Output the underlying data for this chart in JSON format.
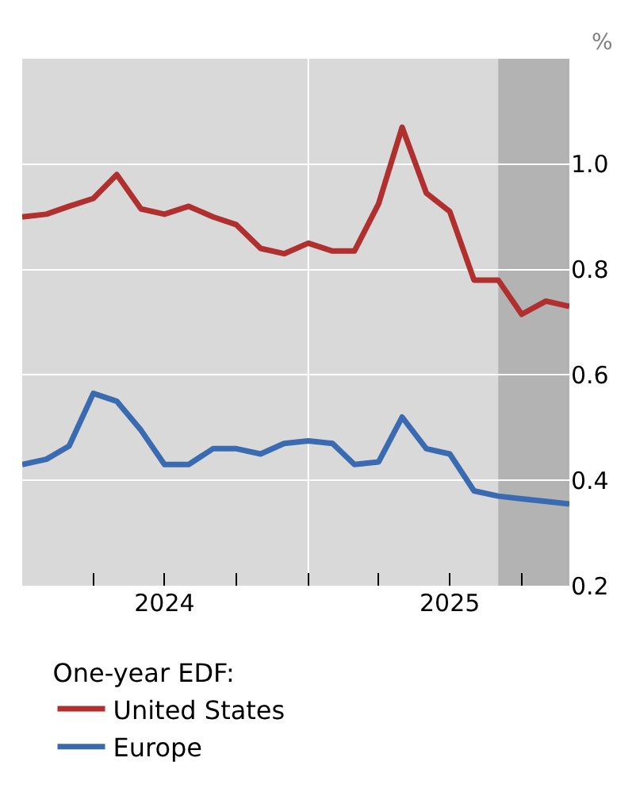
{
  "chart_data": {
    "type": "line",
    "ylabel": "%",
    "legend_title": "One-year EDF:",
    "x": [
      "2024-01",
      "2024-02",
      "2024-03",
      "2024-04",
      "2024-05",
      "2024-06",
      "2024-07",
      "2024-08",
      "2024-09",
      "2024-10",
      "2024-11",
      "2024-12",
      "2025-01",
      "2025-02",
      "2025-03",
      "2025-04",
      "2025-05",
      "2025-06",
      "2025-07",
      "2025-08",
      "2025-09",
      "2025-10",
      "2025-11",
      "2025-12"
    ],
    "series": [
      {
        "name": "United States",
        "color": "#b03030",
        "values": [
          0.9,
          0.905,
          0.92,
          0.935,
          0.98,
          0.915,
          0.905,
          0.92,
          0.9,
          0.885,
          0.84,
          0.83,
          0.85,
          0.835,
          0.835,
          0.925,
          1.07,
          0.945,
          0.91,
          0.78,
          0.78,
          0.715,
          0.74,
          0.73
        ]
      },
      {
        "name": "Europe",
        "color": "#3a6bb0",
        "values": [
          0.43,
          0.44,
          0.465,
          0.565,
          0.55,
          0.495,
          0.43,
          0.43,
          0.46,
          0.46,
          0.45,
          0.47,
          0.475,
          0.47,
          0.43,
          0.435,
          0.52,
          0.46,
          0.45,
          0.38,
          0.37,
          0.365,
          0.36,
          0.355
        ]
      }
    ],
    "xlim": [
      "2024-01",
      "2025-12"
    ],
    "xticks": [
      {
        "value": "2024-01",
        "label": null
      },
      {
        "value": "2024-04",
        "label": null
      },
      {
        "value": "2024-07",
        "label": "2024"
      },
      {
        "value": "2024-10",
        "label": null
      },
      {
        "value": "2025-01",
        "label": null
      },
      {
        "value": "2025-04",
        "label": null
      },
      {
        "value": "2025-07",
        "label": "2025"
      },
      {
        "value": "2025-10",
        "label": null
      }
    ],
    "ylim": [
      0.2,
      1.2
    ],
    "yticks": [
      {
        "value": 0.2,
        "label": "0.2"
      },
      {
        "value": 0.4,
        "label": "0.4"
      },
      {
        "value": 0.6,
        "label": "0.6"
      },
      {
        "value": 0.8,
        "label": "0.8"
      },
      {
        "value": 1.0,
        "label": "1.0"
      }
    ],
    "grid": "y",
    "legend": "bottom",
    "line_style": "solid",
    "marker": "none",
    "ref_lines": [
      {
        "axis": "x",
        "value": "2025-01",
        "color": "#ffffff"
      }
    ],
    "bands": [
      {
        "axis": "x",
        "from": "2025-09",
        "to": "2025-12",
        "color": "#b3b3b3"
      }
    ]
  }
}
